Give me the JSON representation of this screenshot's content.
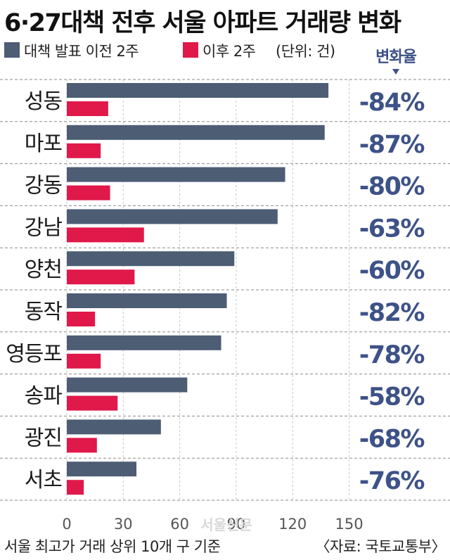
{
  "title": "6·27대책 전후 서울 아파트 거래량 변화",
  "chart_data": {
    "type": "bar",
    "orientation": "horizontal",
    "categories": [
      "성동",
      "마포",
      "강동",
      "강남",
      "양천",
      "동작",
      "영등포",
      "송파",
      "광진",
      "서초"
    ],
    "series": [
      {
        "name": "대책 발표 이전 2주",
        "color": "#4c5d74",
        "values": [
          139,
          137,
          116,
          112,
          89,
          85,
          82,
          64,
          50,
          37
        ]
      },
      {
        "name": "이후 2주",
        "color": "#e0194a",
        "values": [
          22,
          18,
          23,
          41,
          36,
          15,
          18,
          27,
          16,
          9
        ]
      }
    ],
    "unit_note": "(단위: 건)",
    "change_header": "변화율",
    "change_labels": [
      "-84%",
      "-87%",
      "-80%",
      "-63%",
      "-60%",
      "-82%",
      "-78%",
      "-58%",
      "-68%",
      "-76%"
    ],
    "x_ticks": [
      "0",
      "30",
      "60",
      "90",
      "120",
      "150"
    ],
    "xlim": [
      0,
      150
    ],
    "grid": true,
    "legend_position": "top-left"
  },
  "watermark": "서울신문",
  "footnote_left": "서울 최고가 거래 상위 10개 구 기준",
  "footnote_right": "〈자료: 국토교통부〉",
  "colors": {
    "change_text": "#3d5287",
    "divider": "#8a8a8a"
  }
}
